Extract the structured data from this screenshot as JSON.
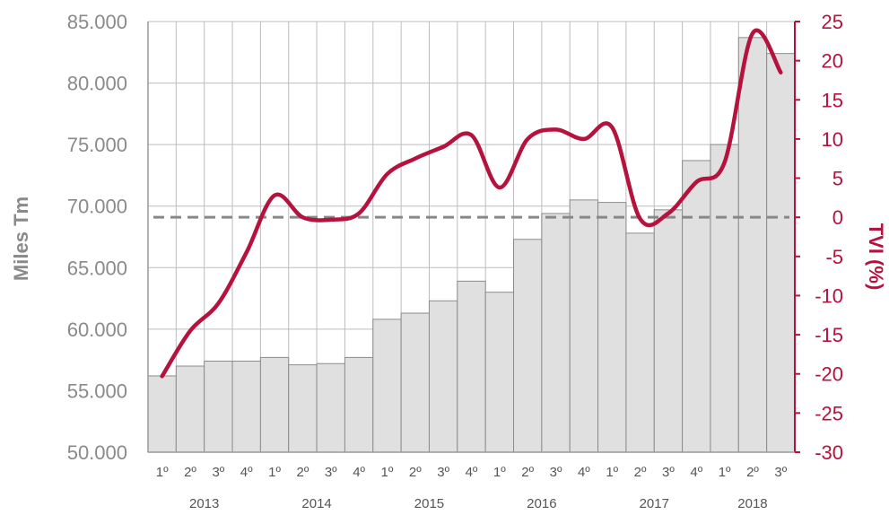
{
  "colors": {
    "bar_fill": "#e0e0e0",
    "bar_stroke": "#8c8c8c",
    "grid": "#bdbdbd",
    "line": "#b5123e",
    "zero_line": "#888888",
    "left_axis_text": "#8a8a8a",
    "right_axis_text": "#b5123e"
  },
  "chart_data": {
    "type": "bar+line",
    "title": "",
    "ylabel_left": "Miles Tm",
    "ylabel_right": "TVI (%)",
    "y_left": {
      "min": 50000,
      "max": 85000,
      "ticks": [
        "50.000",
        "55.000",
        "60.000",
        "65.000",
        "70.000",
        "75.000",
        "80.000",
        "85.000"
      ]
    },
    "y_right": {
      "min": -30,
      "max": 25,
      "ticks": [
        "-30",
        "-25",
        "-20",
        "-15",
        "-10",
        "-5",
        "0",
        "5",
        "10",
        "15",
        "20",
        "25"
      ]
    },
    "quarters": [
      "1º",
      "2º",
      "3º",
      "4º",
      "1º",
      "2º",
      "3º",
      "4º",
      "1º",
      "2º",
      "3º",
      "4º",
      "1º",
      "2º",
      "3º",
      "4º",
      "1º",
      "2º",
      "3º",
      "4º",
      "1º",
      "2º",
      "3º"
    ],
    "years": [
      {
        "label": "2013",
        "start": 0,
        "end": 3
      },
      {
        "label": "2014",
        "start": 4,
        "end": 7
      },
      {
        "label": "2015",
        "start": 8,
        "end": 11
      },
      {
        "label": "2016",
        "start": 12,
        "end": 15
      },
      {
        "label": "2017",
        "start": 16,
        "end": 19
      },
      {
        "label": "2018",
        "start": 20,
        "end": 22
      }
    ],
    "series": [
      {
        "type": "bar",
        "axis": "left",
        "values": [
          56200,
          57000,
          57400,
          57400,
          57700,
          57100,
          57200,
          57700,
          60800,
          61300,
          62300,
          63900,
          63000,
          67300,
          69400,
          70500,
          70300,
          67800,
          69700,
          73700,
          75000,
          83700,
          82400
        ]
      },
      {
        "type": "line",
        "axis": "right",
        "values": [
          -20.3,
          -14.5,
          -11.0,
          -4.5,
          2.8,
          0.0,
          -0.3,
          0.5,
          5.5,
          7.5,
          9.0,
          10.5,
          3.8,
          10.0,
          11.2,
          10.0,
          11.5,
          -0.2,
          0.5,
          4.5,
          7.0,
          23.5,
          18.5
        ]
      }
    ],
    "reference_line": {
      "axis": "right",
      "value": 0,
      "style": "dashed"
    },
    "grid": {
      "vertical": true,
      "horizontal": true
    }
  }
}
